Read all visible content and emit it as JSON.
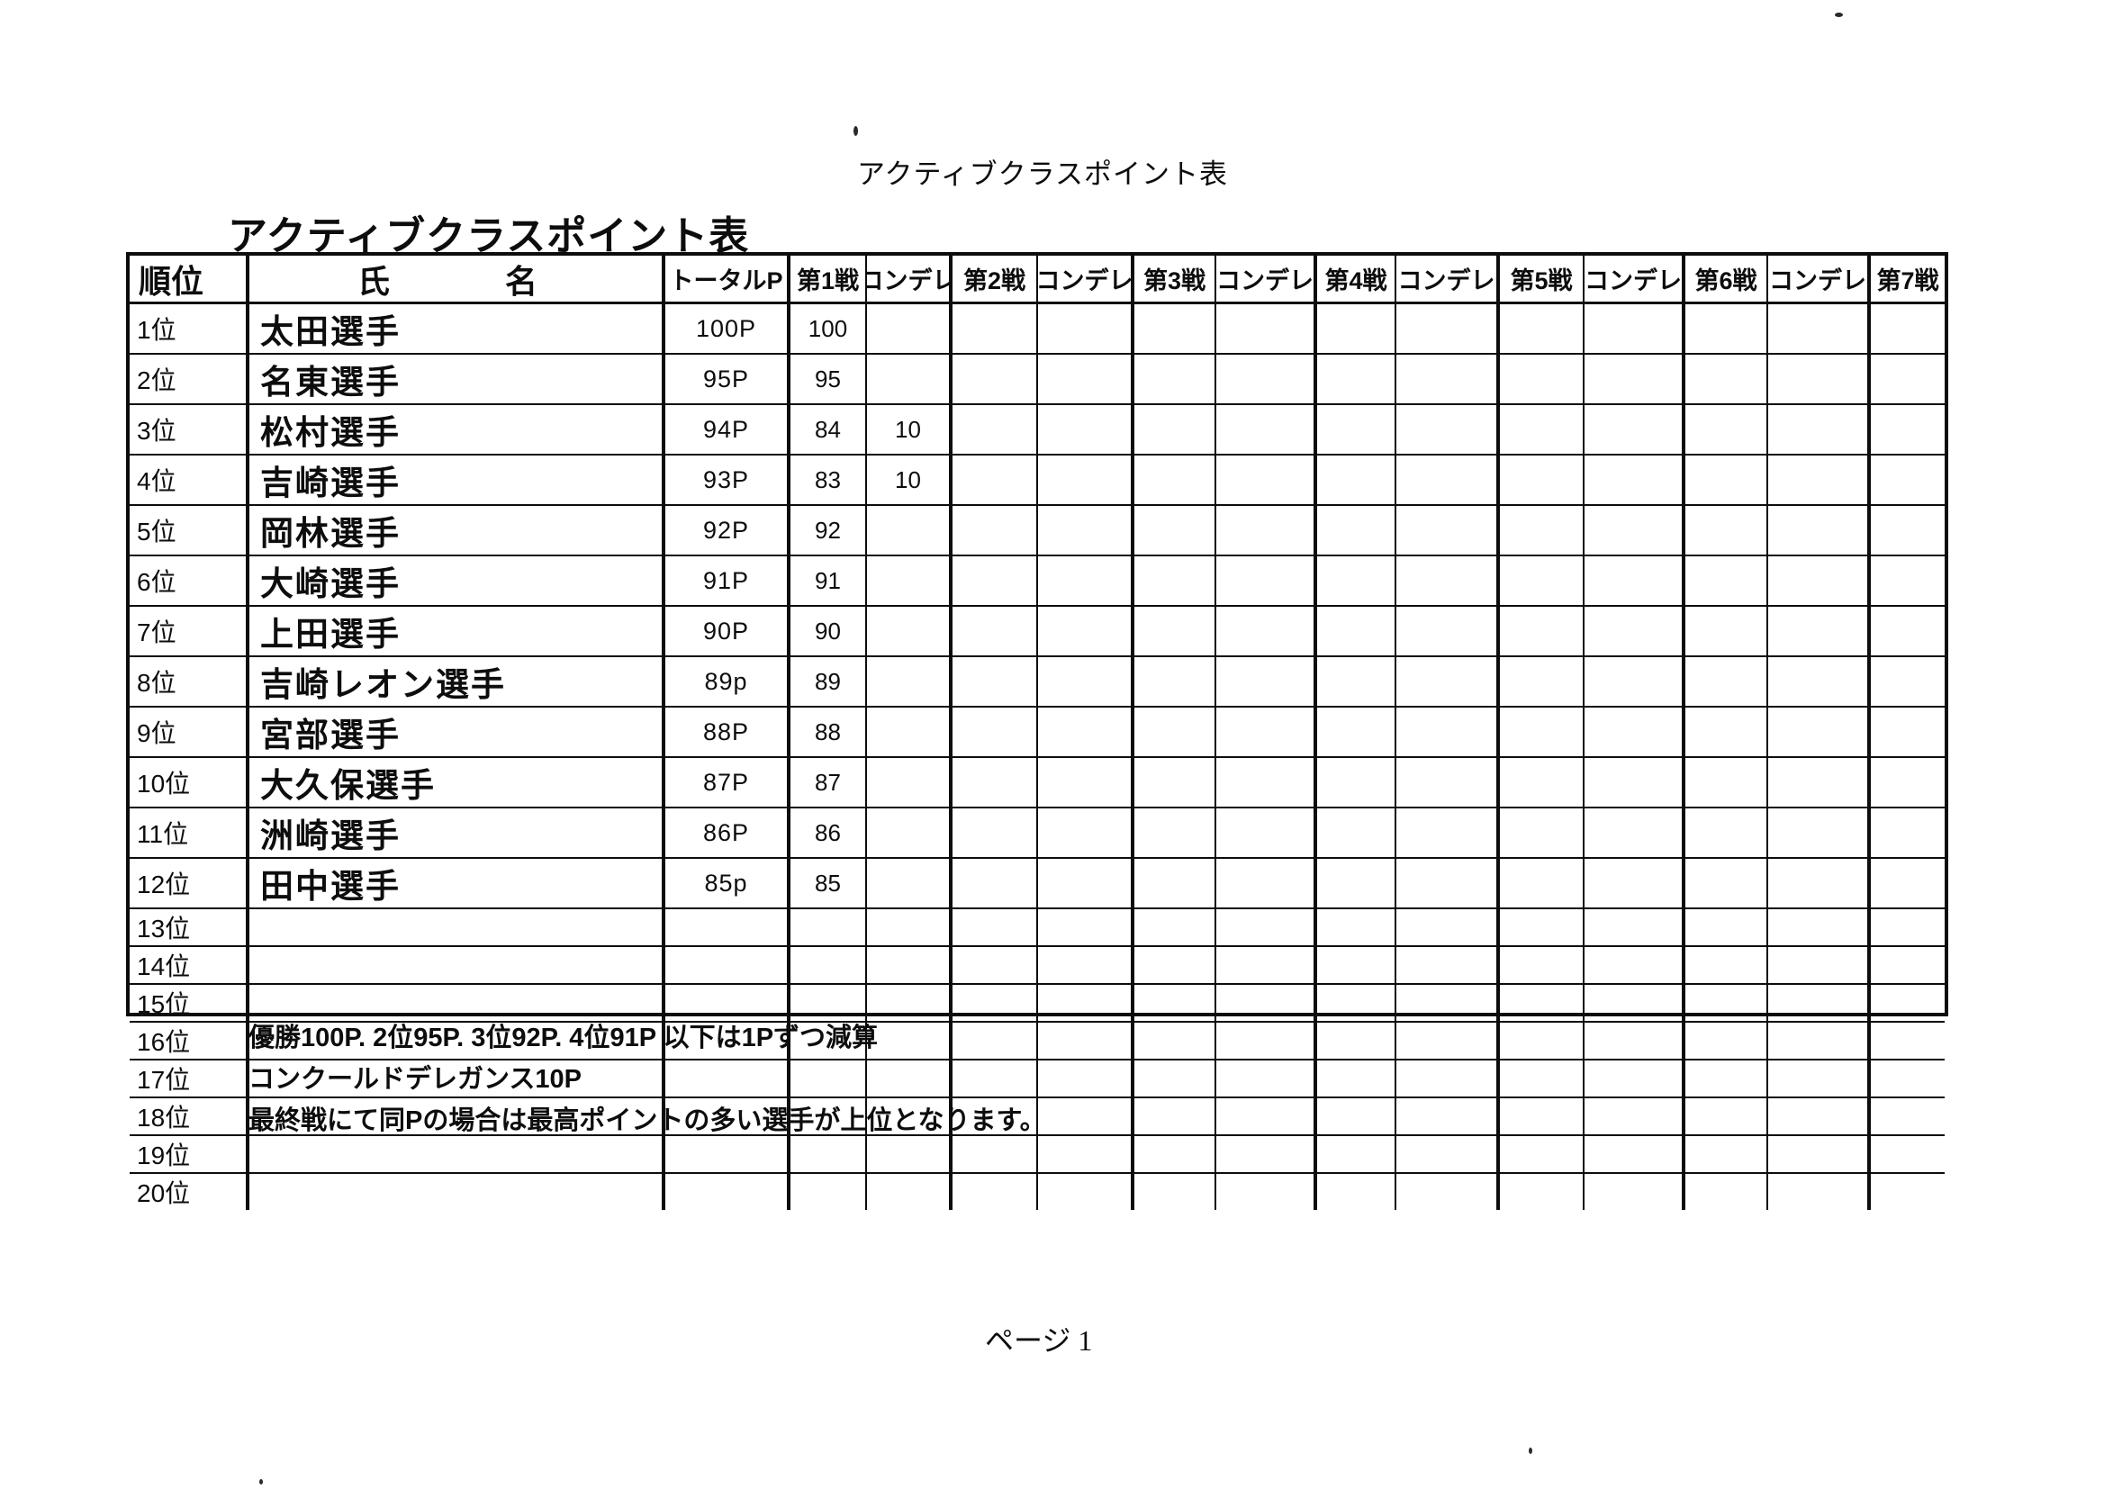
{
  "document": {
    "top_header": "アクティブクラスポイント表",
    "table_title": "アクティブクラスポイント表",
    "notes": [
      "優勝100P. 2位95P. 3位92P. 4位91P 以下は1Pずつ減算",
      "コンクールドデレガンス10P",
      "最終戦にて同Pの場合は最高ポイントの多い選手が上位となります。"
    ],
    "page_footer": "ページ 1"
  },
  "table": {
    "rank_header": "順位",
    "name_header_left": "氏",
    "name_header_right": "名",
    "total_header": "トータルP",
    "condele_header": "コンデレ",
    "round_headers": [
      "第1戦",
      "第2戦",
      "第3戦",
      "第4戦",
      "第5戦",
      "第6戦",
      "第7戦"
    ],
    "rows": [
      {
        "rank": "1位",
        "name": "太田選手",
        "total": "100P",
        "values": [
          "100",
          "",
          "",
          "",
          "",
          "",
          "",
          "",
          "",
          "",
          "",
          "",
          ""
        ]
      },
      {
        "rank": "2位",
        "name": "名東選手",
        "total": "95P",
        "values": [
          "95",
          "",
          "",
          "",
          "",
          "",
          "",
          "",
          "",
          "",
          "",
          "",
          ""
        ]
      },
      {
        "rank": "3位",
        "name": "松村選手",
        "total": "94P",
        "values": [
          "84",
          "10",
          "",
          "",
          "",
          "",
          "",
          "",
          "",
          "",
          "",
          "",
          ""
        ]
      },
      {
        "rank": "4位",
        "name": "吉崎選手",
        "total": "93P",
        "values": [
          "83",
          "10",
          "",
          "",
          "",
          "",
          "",
          "",
          "",
          "",
          "",
          "",
          ""
        ]
      },
      {
        "rank": "5位",
        "name": "岡林選手",
        "total": "92P",
        "values": [
          "92",
          "",
          "",
          "",
          "",
          "",
          "",
          "",
          "",
          "",
          "",
          "",
          ""
        ]
      },
      {
        "rank": "6位",
        "name": "大崎選手",
        "total": "91P",
        "values": [
          "91",
          "",
          "",
          "",
          "",
          "",
          "",
          "",
          "",
          "",
          "",
          "",
          ""
        ]
      },
      {
        "rank": "7位",
        "name": "上田選手",
        "total": "90P",
        "values": [
          "90",
          "",
          "",
          "",
          "",
          "",
          "",
          "",
          "",
          "",
          "",
          "",
          ""
        ]
      },
      {
        "rank": "8位",
        "name": "吉崎レオン選手",
        "total": "89p",
        "values": [
          "89",
          "",
          "",
          "",
          "",
          "",
          "",
          "",
          "",
          "",
          "",
          "",
          ""
        ]
      },
      {
        "rank": "9位",
        "name": "宮部選手",
        "total": "88P",
        "values": [
          "88",
          "",
          "",
          "",
          "",
          "",
          "",
          "",
          "",
          "",
          "",
          "",
          ""
        ]
      },
      {
        "rank": "10位",
        "name": "大久保選手",
        "total": "87P",
        "values": [
          "87",
          "",
          "",
          "",
          "",
          "",
          "",
          "",
          "",
          "",
          "",
          "",
          ""
        ]
      },
      {
        "rank": "11位",
        "name": "洲崎選手",
        "total": "86P",
        "values": [
          "86",
          "",
          "",
          "",
          "",
          "",
          "",
          "",
          "",
          "",
          "",
          "",
          ""
        ]
      },
      {
        "rank": "12位",
        "name": "田中選手",
        "total": "85p",
        "values": [
          "85",
          "",
          "",
          "",
          "",
          "",
          "",
          "",
          "",
          "",
          "",
          "",
          ""
        ]
      },
      {
        "rank": "13位",
        "name": "",
        "total": "",
        "values": [
          "",
          "",
          "",
          "",
          "",
          "",
          "",
          "",
          "",
          "",
          "",
          "",
          ""
        ]
      },
      {
        "rank": "14位",
        "name": "",
        "total": "",
        "values": [
          "",
          "",
          "",
          "",
          "",
          "",
          "",
          "",
          "",
          "",
          "",
          "",
          ""
        ]
      },
      {
        "rank": "15位",
        "name": "",
        "total": "",
        "values": [
          "",
          "",
          "",
          "",
          "",
          "",
          "",
          "",
          "",
          "",
          "",
          "",
          ""
        ]
      },
      {
        "rank": "16位",
        "name": "",
        "total": "",
        "values": [
          "",
          "",
          "",
          "",
          "",
          "",
          "",
          "",
          "",
          "",
          "",
          "",
          ""
        ]
      },
      {
        "rank": "17位",
        "name": "",
        "total": "",
        "values": [
          "",
          "",
          "",
          "",
          "",
          "",
          "",
          "",
          "",
          "",
          "",
          "",
          ""
        ]
      },
      {
        "rank": "18位",
        "name": "",
        "total": "",
        "values": [
          "",
          "",
          "",
          "",
          "",
          "",
          "",
          "",
          "",
          "",
          "",
          "",
          ""
        ]
      },
      {
        "rank": "19位",
        "name": "",
        "total": "",
        "values": [
          "",
          "",
          "",
          "",
          "",
          "",
          "",
          "",
          "",
          "",
          "",
          "",
          ""
        ]
      },
      {
        "rank": "20位",
        "name": "",
        "total": "",
        "values": [
          "",
          "",
          "",
          "",
          "",
          "",
          "",
          "",
          "",
          "",
          "",
          "",
          ""
        ]
      }
    ]
  }
}
